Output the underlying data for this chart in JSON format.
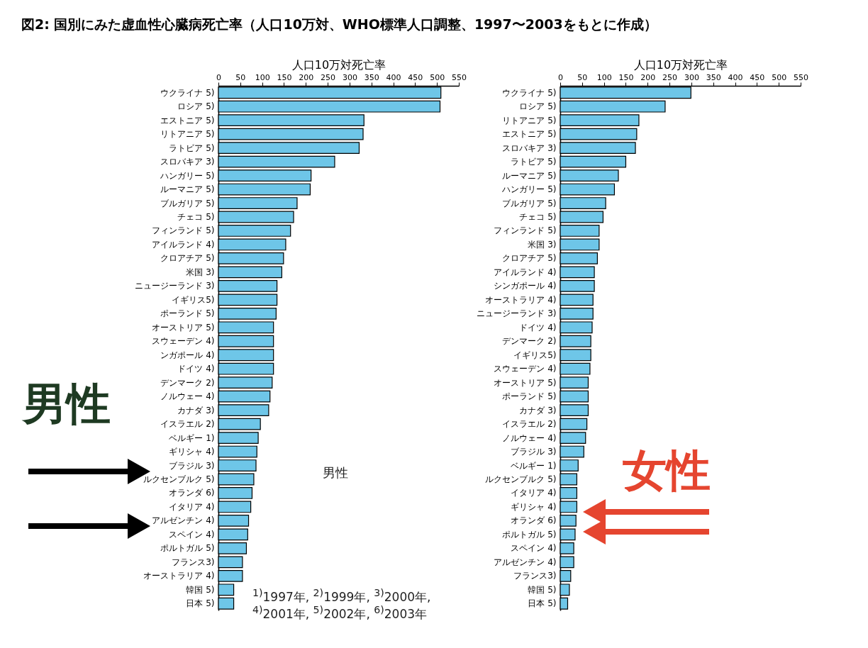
{
  "chart_data": [
    {
      "type": "bar",
      "orientation": "horizontal",
      "title": "図2:  国別にみた虚血性心臓病死亡率（人口10万対、WHO標準人口調整、1997〜2003をもとに作成）",
      "xlabel": "人口10万対死亡率",
      "color": "#6ec6e8",
      "xlim": [
        0,
        550
      ],
      "xticks": [
        0,
        50,
        100,
        150,
        200,
        250,
        300,
        350,
        400,
        450,
        500,
        550
      ],
      "categories": [
        "ウクライナ 5)",
        "ロシア 5)",
        "エストニア 5)",
        "リトアニア 5)",
        "ラトビア 5)",
        "スロバキア 3)",
        "ハンガリー 5)",
        "ルーマニア 5)",
        "ブルガリア 5)",
        "チェコ 5)",
        "フィンランド 5)",
        "アイルランド 4)",
        "クロアチア 5)",
        "米国 3)",
        "ニュージーランド 3)",
        "イギリス5)",
        "ポーランド 5)",
        "オーストリア 5)",
        "スウェーデン 4)",
        "ンガポール 4)",
        "ドイツ 4)",
        "デンマーク 2)",
        "ノルウェー 4)",
        "カナダ 3)",
        "イスラエル 2)",
        "ベルギー 1)",
        "ギリシャ 4)",
        "ブラジル 3)",
        "ルクセンブルク 5)",
        "オランダ 6)",
        "イタリア 4)",
        "アルゼンチン 4)",
        "スペイン 4)",
        "ポルトガル 5)",
        "フランス3)",
        "オーストラリア 4)",
        "韓国 5)",
        "日本 5)"
      ],
      "values": [
        509,
        507,
        333,
        331,
        322,
        266,
        212,
        210,
        180,
        172,
        165,
        154,
        149,
        145,
        134,
        134,
        132,
        126,
        126,
        126,
        126,
        123,
        118,
        115,
        96,
        91,
        88,
        86,
        81,
        77,
        74,
        69,
        67,
        64,
        55,
        55,
        35,
        35
      ],
      "annotations": [
        "男性",
        "男性",
        "$^{1)}$1997年, $^{2)}$1999年, $^{3)}$2000年,",
        "$^{4)}$2001年, $^{5)}$2002年, $^{6)}$2003年"
      ]
    },
    {
      "type": "bar",
      "orientation": "horizontal",
      "xlabel": "人口10万対死亡率",
      "color": "#6ec6e8",
      "xlim": [
        0,
        550
      ],
      "xticks": [
        0,
        50,
        100,
        150,
        200,
        250,
        300,
        350,
        400,
        450,
        500,
        550
      ],
      "categories": [
        "ウクライナ 5)",
        "ロシア 5)",
        "リトアニア 5)",
        "エストニア 5)",
        "スロバキア 3)",
        "ラトビア 5)",
        "ルーマニア 5)",
        "ハンガリー 5)",
        "ブルガリア 5)",
        "チェコ 5)",
        "フィンランド 5)",
        "米国 3)",
        "クロアチア 5)",
        "アイルランド 4)",
        "シンガポール 4)",
        "オーストラリア 4)",
        "ニュージーランド 3)",
        "ドイツ 4)",
        "デンマーク 2)",
        "イギリス5)",
        "スウェーデン 4)",
        "オーストリア 5)",
        "ポーランド 5)",
        "カナダ 3)",
        "イスラエル 2)",
        "ノルウェー 4)",
        "ブラジル 3)",
        "ベルギー 1)",
        "ルクセンブルク 5)",
        "イタリア 4)",
        "ギリシャ 4)",
        "オランダ 6)",
        "ポルトガル 5)",
        "スペイン 4)",
        "アルゼンチン 4)",
        "フランス3)",
        "韓国 5)",
        "日本 5)"
      ],
      "values": [
        299,
        240,
        180,
        175,
        172,
        150,
        133,
        124,
        104,
        98,
        89,
        89,
        85,
        78,
        78,
        75,
        75,
        73,
        70,
        70,
        68,
        64,
        64,
        64,
        61,
        58,
        54,
        41,
        38,
        38,
        38,
        36,
        34,
        31,
        31,
        24,
        21,
        17
      ],
      "annotations": [
        "女性"
      ]
    }
  ]
}
